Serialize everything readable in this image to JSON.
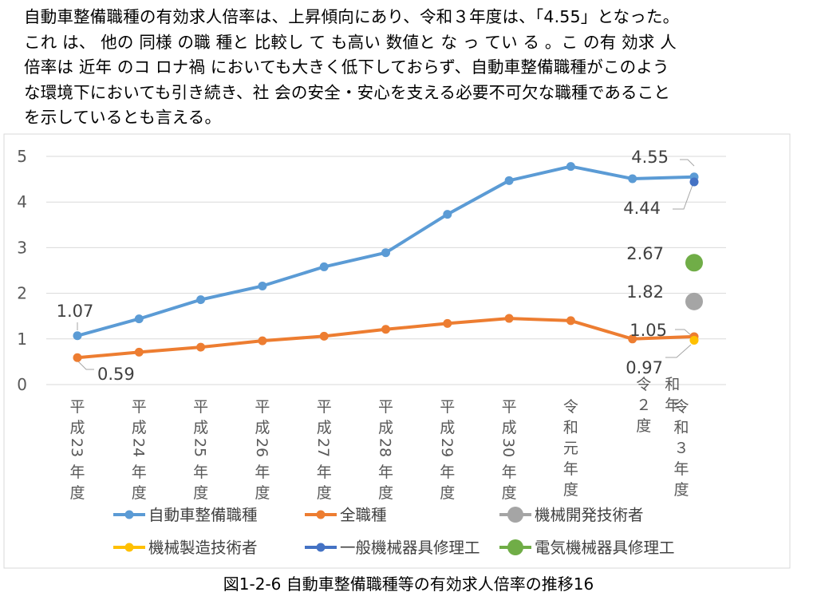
{
  "intro_lines": [
    "自動車整備職種の有効求人倍率は、上昇傾向にあり、令和３年度は、「4.55」となった。",
    "これ は、 他の 同様 の職 種と 比較し て も高い 数値と な っ てい る 。こ の有 効求 人",
    "倍率は 近年 のコ ロナ禍 においても大きく低下しておらず、自動車整備職種がこのよう",
    "な環境下においても引き続き、社 会の安全・安心を支える必要不可欠な職種であること",
    "を示しているとも言える。"
  ],
  "caption": "図1-2-6 自動車整備職種等の有効求人倍率の推移16",
  "chart_data": {
    "type": "line",
    "title": "",
    "xlabel": "",
    "ylabel": "",
    "ylim": [
      0,
      5
    ],
    "yticks": [
      "0",
      "1",
      "2",
      "3",
      "4",
      "5"
    ],
    "grid": true,
    "legend_position": "bottom",
    "categories": [
      "平成23年度",
      "平成24年度",
      "平成25年度",
      "平成26年度",
      "平成27年度",
      "平成28年度",
      "平成29年度",
      "平成30年度",
      "令和元年度",
      "令和２年度",
      "令和３年度"
    ],
    "category_labels": [
      [
        "平",
        "成",
        "23",
        "年",
        "度"
      ],
      [
        "平",
        "成",
        "24",
        "年",
        "度"
      ],
      [
        "平",
        "成",
        "25",
        "年",
        "度"
      ],
      [
        "平",
        "成",
        "26",
        "年",
        "度"
      ],
      [
        "平",
        "成",
        "27",
        "年",
        "度"
      ],
      [
        "平",
        "成",
        "28",
        "年",
        "度"
      ],
      [
        "平",
        "成",
        "29",
        "年",
        "度"
      ],
      [
        "平",
        "成",
        "30",
        "年",
        "度"
      ],
      [
        "令",
        "和",
        "元",
        "年",
        "度"
      ],
      [
        "令",
        "２",
        "度"
      ],
      [
        "令",
        "和",
        "３",
        "年",
        "度"
      ]
    ],
    "category_label_extra": [
      "和",
      "年"
    ],
    "series": [
      {
        "name": "自動車整備職種",
        "color": "#5b9bd5",
        "kind": "line",
        "values": [
          1.07,
          1.44,
          1.86,
          2.16,
          2.58,
          2.89,
          3.73,
          4.47,
          4.78,
          4.51,
          4.55
        ]
      },
      {
        "name": "全職種",
        "color": "#ed7d31",
        "kind": "line",
        "values": [
          0.59,
          0.71,
          0.82,
          0.96,
          1.06,
          1.21,
          1.34,
          1.45,
          1.4,
          1.0,
          1.05
        ]
      },
      {
        "name": "機械開発技術者",
        "color": "#a5a5a5",
        "kind": "point",
        "values": [
          null,
          null,
          null,
          null,
          null,
          null,
          null,
          null,
          null,
          null,
          1.82
        ]
      },
      {
        "name": "機械製造技術者",
        "color": "#ffc000",
        "kind": "point",
        "values": [
          null,
          null,
          null,
          null,
          null,
          null,
          null,
          null,
          null,
          null,
          0.97
        ]
      },
      {
        "name": "一般機械器具修理工",
        "color": "#4472c4",
        "kind": "point",
        "values": [
          null,
          null,
          null,
          null,
          null,
          null,
          null,
          null,
          null,
          null,
          4.44
        ]
      },
      {
        "name": "電気機械器具修理工",
        "color": "#70ad47",
        "kind": "point",
        "values": [
          null,
          null,
          null,
          null,
          null,
          null,
          null,
          null,
          null,
          null,
          2.67
        ]
      }
    ],
    "data_labels": [
      {
        "text": "1.07",
        "series": 0,
        "index": 0
      },
      {
        "text": "0.59",
        "series": 1,
        "index": 0
      },
      {
        "text": "4.55",
        "series": 0,
        "index": 10
      },
      {
        "text": "4.44",
        "series": 4,
        "index": 10
      },
      {
        "text": "2.67",
        "series": 5,
        "index": 10
      },
      {
        "text": "1.82",
        "series": 2,
        "index": 10
      },
      {
        "text": "1.05",
        "series": 1,
        "index": 10
      },
      {
        "text": "0.97",
        "series": 3,
        "index": 10
      }
    ]
  }
}
